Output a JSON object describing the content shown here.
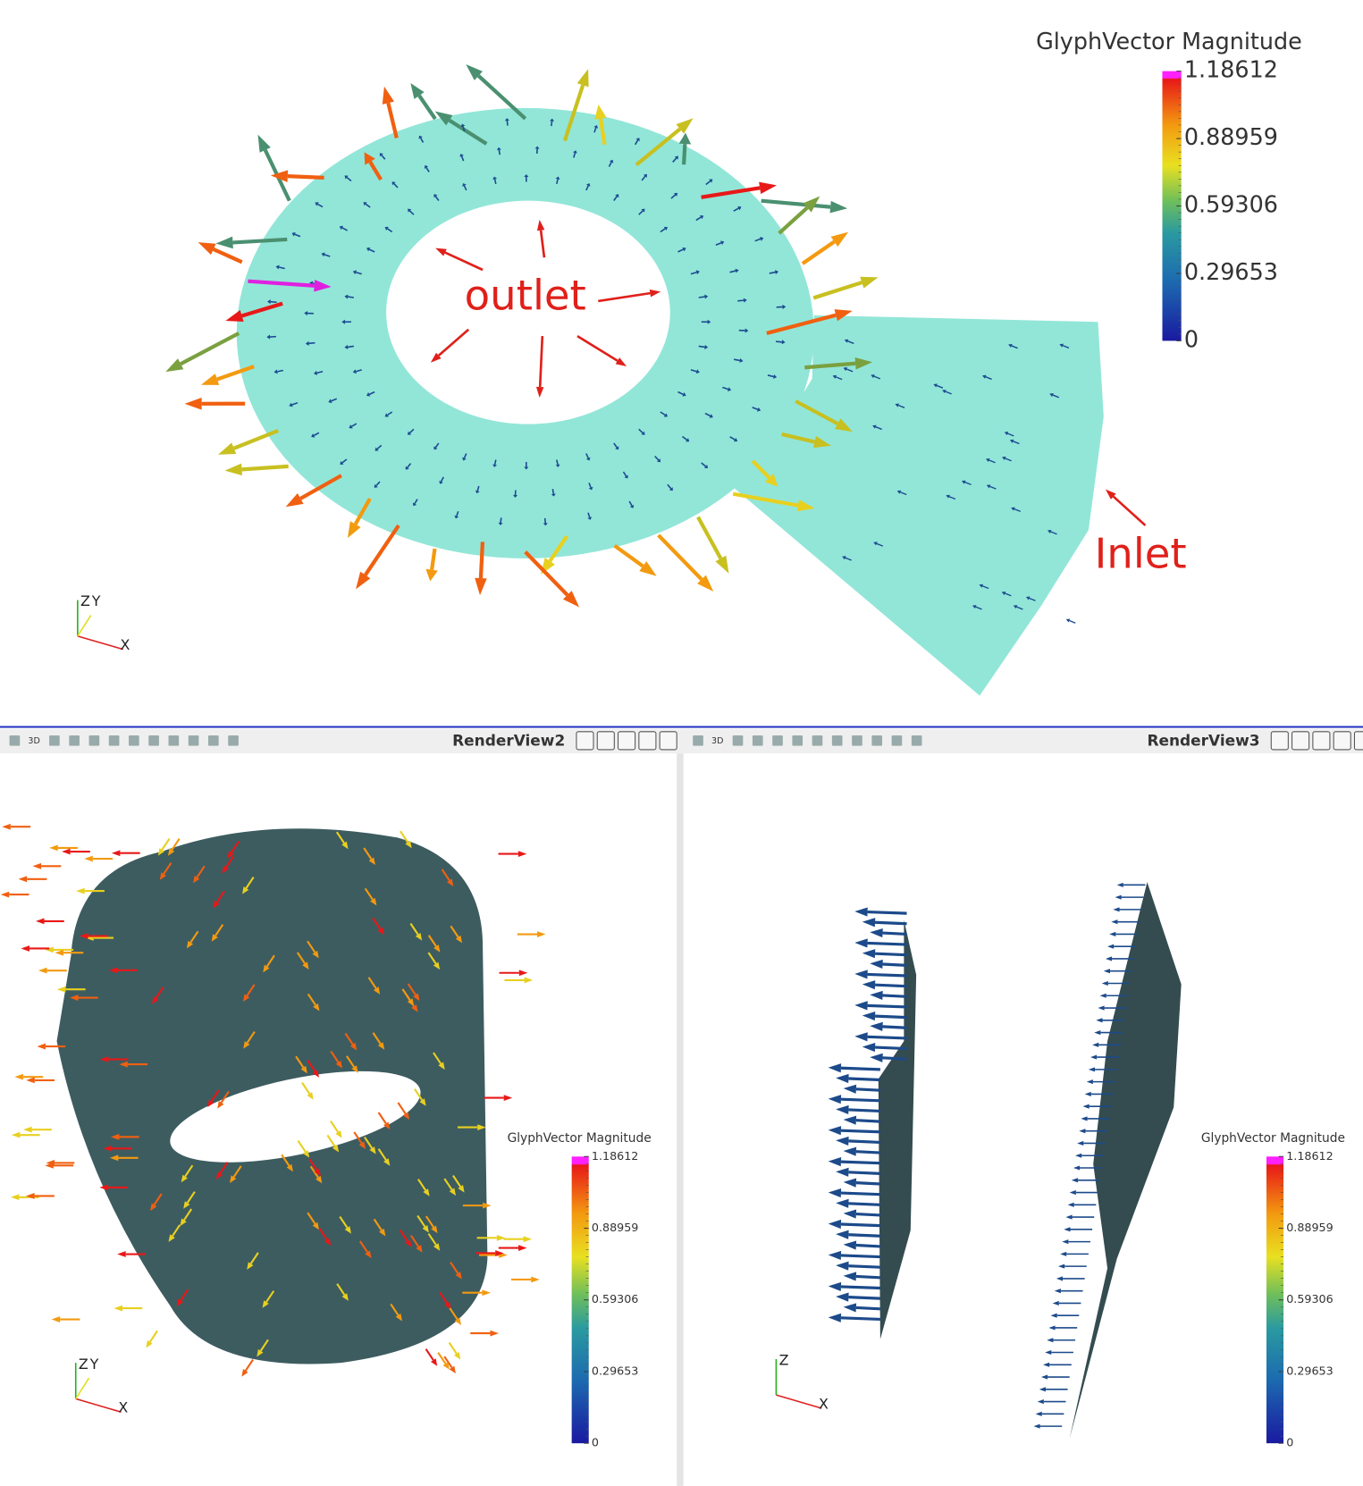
{
  "top_view": {
    "annotations": [
      "outlet",
      "Inlet"
    ],
    "axes": [
      "Z",
      "Y",
      "X"
    ],
    "colorbar": {
      "title": "GlyphVector Magnitude",
      "ticks": [
        1.18612,
        0.88959,
        0.59306,
        0.29653,
        0
      ]
    }
  },
  "panels": [
    {
      "title": "RenderView2",
      "toolbar_label": "3D",
      "axes": [
        "Z",
        "Y",
        "X"
      ],
      "colorbar": {
        "title": "GlyphVector Magnitude",
        "ticks": [
          1.18612,
          0.88959,
          0.59306,
          0.29653,
          0
        ]
      }
    },
    {
      "title": "RenderView3",
      "toolbar_label": "3D",
      "axes": [
        "Z",
        "X"
      ],
      "colorbar": {
        "title": "GlyphVector Magnitude",
        "ticks": [
          1.18612,
          0.88959,
          0.59306,
          0.29653,
          0
        ]
      }
    }
  ]
}
